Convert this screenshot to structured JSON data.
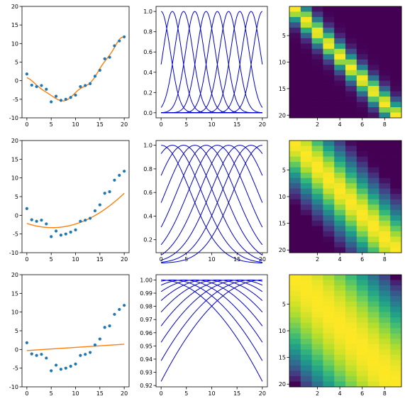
{
  "colors": {
    "scatter": "#1f77b4",
    "fit": "#ff7f0e",
    "basis": "#0000cc",
    "heatmap": "viridis"
  },
  "samples": {
    "x": [
      0,
      1,
      2,
      3,
      4,
      5,
      6,
      7,
      8,
      9,
      10,
      11,
      12,
      13,
      14,
      15,
      16,
      17,
      18,
      19,
      20
    ],
    "y": [
      1.8,
      -1.2,
      -1.6,
      -1.3,
      -2.3,
      -5.7,
      -4.2,
      -5.3,
      -5.0,
      -4.5,
      -3.9,
      -1.6,
      -1.3,
      -0.8,
      1.2,
      2.8,
      5.9,
      6.3,
      9.4,
      10.7,
      11.8
    ]
  },
  "chart_data": [
    {
      "type": "scatter",
      "row": 0,
      "col": 0,
      "xlim": [
        -1,
        21
      ],
      "ylim": [
        -10,
        20
      ],
      "xticks": [
        0,
        5,
        10,
        15,
        20
      ],
      "yticks": [
        -10,
        -5,
        0,
        5,
        10,
        15,
        20
      ],
      "fit": "narrow"
    },
    {
      "type": "line",
      "row": 0,
      "col": 1,
      "width": 0.15,
      "xlim": [
        -1,
        21
      ],
      "ylim": [
        -0.05,
        1.05
      ],
      "xticks": [
        0,
        5,
        10,
        15,
        20
      ],
      "yticks": [
        0.0,
        0.2,
        0.4,
        0.6,
        0.8,
        1.0
      ],
      "ytick_labels": [
        "0.0",
        "0.2",
        "0.4",
        "0.6",
        "0.8",
        "1.0"
      ]
    },
    {
      "type": "heatmap",
      "row": 0,
      "col": 2,
      "width": 0.15,
      "xticks": [
        2,
        4,
        6,
        8
      ],
      "yticks": [
        5,
        10,
        15,
        20
      ]
    },
    {
      "type": "scatter",
      "row": 1,
      "col": 0,
      "xlim": [
        -1,
        21
      ],
      "ylim": [
        -10,
        20
      ],
      "xticks": [
        0,
        5,
        10,
        15,
        20
      ],
      "yticks": [
        -10,
        -5,
        0,
        5,
        10,
        15,
        20
      ],
      "fit": "medium"
    },
    {
      "type": "line",
      "row": 1,
      "col": 1,
      "width": 0.015,
      "xlim": [
        -1,
        21
      ],
      "ylim": [
        0.09,
        1.04
      ],
      "xticks": [
        0,
        5,
        10,
        15,
        20
      ],
      "yticks": [
        0.2,
        0.4,
        0.6,
        0.8,
        1.0
      ],
      "ytick_labels": [
        "0.2",
        "0.4",
        "0.6",
        "0.8",
        "1.0"
      ]
    },
    {
      "type": "heatmap",
      "row": 1,
      "col": 2,
      "width": 0.015,
      "xticks": [
        2,
        4,
        6,
        8
      ],
      "yticks": [
        5,
        10,
        15,
        20
      ]
    },
    {
      "type": "scatter",
      "row": 2,
      "col": 0,
      "xlim": [
        -1,
        21
      ],
      "ylim": [
        -10,
        20
      ],
      "xticks": [
        0,
        5,
        10,
        15,
        20
      ],
      "yticks": [
        -10,
        -5,
        0,
        5,
        10,
        15,
        20
      ],
      "fit": "wide"
    },
    {
      "type": "line",
      "row": 2,
      "col": 1,
      "width": 0.0002,
      "xlim": [
        -1,
        21
      ],
      "ylim": [
        0.919,
        1.004
      ],
      "xticks": [
        0,
        5,
        10,
        15,
        20
      ],
      "yticks": [
        0.92,
        0.93,
        0.94,
        0.95,
        0.96,
        0.97,
        0.98,
        0.99,
        1.0
      ],
      "ytick_labels": [
        "0.92",
        "0.93",
        "0.94",
        "0.95",
        "0.96",
        "0.97",
        "0.98",
        "0.99",
        "1.00"
      ]
    },
    {
      "type": "heatmap",
      "row": 2,
      "col": 2,
      "width": 0.0002,
      "xticks": [
        2,
        4,
        6,
        8
      ],
      "yticks": [
        5,
        10,
        15,
        20
      ]
    }
  ]
}
